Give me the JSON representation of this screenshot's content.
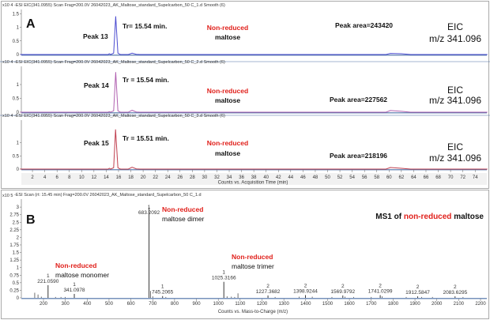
{
  "panel_labels": {
    "a": "A",
    "b": "B"
  },
  "chart_data": [
    {
      "type": "line",
      "header": "-ESI EIC(341.0955) Scan Frag=200.0V 26042023_AK_Maltose_standard_Supelcarbon_50 C_1.d  Smooth (6)",
      "y_multiplier": "x10 4",
      "yticks": [
        "0",
        "0.5",
        "1",
        "1.5"
      ],
      "ytick_values": [
        0,
        0.5,
        1,
        1.5
      ],
      "color": "#4b4bd0",
      "x": [
        0,
        14.3,
        14.5,
        14.7,
        15.2,
        15.54,
        15.9,
        16.3,
        17.6,
        18.2,
        18.9,
        19.5,
        59.5,
        60.2,
        62,
        63.5,
        76
      ],
      "y": [
        0,
        0,
        0.03,
        0,
        0.05,
        1.4,
        0.05,
        0,
        0,
        0.05,
        0.01,
        0,
        0,
        0.04,
        0.03,
        0,
        0
      ],
      "annotations": {
        "peak": "Peak 13",
        "tr": "Tr= 15.54 min.",
        "compound_red": "Non-reduced",
        "compound": "maltose",
        "area": "Peak area=243420",
        "eic": "EIC",
        "mz": "m/z 341.096"
      }
    },
    {
      "type": "line",
      "header": "-ESI EIC(341.0955) Scan Frag=200.0V 26042023_AK_Maltose_standard_Supelcarbon_50 C_2.d  Smooth (6)",
      "y_multiplier": "x10 4",
      "yticks": [
        "0",
        "0.5",
        "1"
      ],
      "ytick_values": [
        0,
        0.5,
        1
      ],
      "color": "#b060b0",
      "x": [
        0,
        14.3,
        14.5,
        14.7,
        15.2,
        15.54,
        15.9,
        16.3,
        17.6,
        18.2,
        18.9,
        19.5,
        59.5,
        60.2,
        62,
        63.5,
        76
      ],
      "y": [
        0,
        0,
        0.02,
        0,
        0.05,
        1.45,
        0.05,
        0,
        0,
        0.07,
        0.01,
        0,
        0,
        0.06,
        0.03,
        0,
        0
      ],
      "annotations": {
        "peak": "Peak 14",
        "tr": "Tr = 15.54 min.",
        "compound_red": "Non-reduced",
        "compound": "maltose",
        "area": "Peak area=227562",
        "eic": "EIC",
        "mz": "m/z 341.096"
      }
    },
    {
      "type": "line",
      "header": "-ESI EIC(341.0955) Scan Frag=200.0V 26042023_AK_Maltose_standard_Supelcarbon_50 C_3.d  Smooth (6)",
      "y_multiplier": "x10 4",
      "yticks": [
        "0",
        "0.5",
        "1"
      ],
      "ytick_values": [
        0,
        0.5,
        1
      ],
      "color": "#c04050",
      "x": [
        0,
        14.3,
        14.5,
        14.7,
        15.2,
        15.51,
        15.9,
        16.3,
        17.6,
        18.2,
        18.9,
        19.5,
        59.5,
        60.2,
        62,
        63.5,
        76
      ],
      "y": [
        0,
        0,
        0.03,
        0,
        0.05,
        1.5,
        0.05,
        0,
        0,
        0.07,
        0.01,
        0,
        0,
        0.06,
        0.03,
        0,
        0
      ],
      "annotations": {
        "peak": "Peak 15",
        "tr": "Tr = 15.51 min.",
        "compound_red": "Non-reduced",
        "compound": "maltose",
        "area": "Peak area=218196",
        "eic": "EIC",
        "mz": "m/z 341.096"
      },
      "xticks": [
        "2",
        "4",
        "6",
        "8",
        "10",
        "12",
        "14",
        "16",
        "18",
        "20",
        "22",
        "24",
        "26",
        "28",
        "30",
        "32",
        "34",
        "36",
        "38",
        "40",
        "42",
        "44",
        "46",
        "48",
        "50",
        "52",
        "54",
        "56",
        "58",
        "60",
        "62",
        "64",
        "66",
        "68",
        "70",
        "72",
        "74"
      ],
      "xlabel": "Counts vs. Acquisition Time (min)"
    },
    {
      "type": "bar",
      "header": "-ESI Scan (rt: 15.45 min) Frag=200.0V 26042023_AK_Maltose_standard_Supelcarbon_50 C_1.d",
      "y_multiplier": "x10 5",
      "yticks": [
        "0",
        "0.25",
        "0.5",
        "0.75",
        "1",
        "1.25",
        "1.5",
        "1.75",
        "2",
        "2.25",
        "2.5",
        "2.75",
        "3"
      ],
      "ytick_values": [
        0,
        0.25,
        0.5,
        0.75,
        1,
        1.25,
        1.5,
        1.75,
        2,
        2.25,
        2.5,
        2.75,
        3
      ],
      "xticks": [
        "200",
        "300",
        "400",
        "500",
        "600",
        "700",
        "800",
        "900",
        "1000",
        "1100",
        "1200",
        "1300",
        "1400",
        "1500",
        "1600",
        "1700",
        "1800",
        "1900",
        "2000",
        "2100",
        "2200"
      ],
      "xlabel": "Counts vs. Mass-to-Charge (m/z)",
      "title_prefix": "MS1 of ",
      "title_red": "non-reduced",
      "title_suffix": " maltose",
      "peaks": [
        {
          "mz": 221.059,
          "y": 0.42,
          "charge": "1",
          "label": "221.0590"
        },
        {
          "mz": 341.0978,
          "y": 0.13,
          "charge": "1",
          "label": "341.0978"
        },
        {
          "mz": 683.2092,
          "y": 2.98,
          "charge": "1",
          "label": "683.2092"
        },
        {
          "mz": 745.2065,
          "y": 0.06,
          "charge": "1",
          "label": "745.2065"
        },
        {
          "mz": 1025.3166,
          "y": 0.53,
          "charge": "1",
          "label": "1025.3166"
        },
        {
          "mz": 1227.3682,
          "y": 0.08,
          "charge": "2",
          "label": "1227.3682"
        },
        {
          "mz": 1398.9244,
          "y": 0.09,
          "charge": "2",
          "label": "1398.9244"
        },
        {
          "mz": 1569.9792,
          "y": 0.08,
          "charge": "2",
          "label": "1569.9792"
        },
        {
          "mz": 1741.0299,
          "y": 0.09,
          "charge": "2",
          "label": "1741.0299"
        },
        {
          "mz": 1912.5847,
          "y": 0.05,
          "charge": "2",
          "label": "1912.5847"
        },
        {
          "mz": 2083.6295,
          "y": 0.05,
          "charge": "2",
          "label": "2083.6295"
        }
      ],
      "minor_peaks": {
        "mz": [
          160,
          175,
          190,
          255,
          280,
          300,
          690,
          700,
          760,
          1040,
          1060,
          1075,
          1090,
          1260,
          1370,
          1430,
          1520,
          1580,
          1620,
          1700,
          1750,
          1860,
          1930,
          1980,
          2120
        ],
        "y": [
          0.17,
          0.11,
          0.04,
          0.03,
          0.03,
          0.03,
          0.23,
          0.05,
          0.03,
          0.05,
          0.04,
          0.03,
          0.15,
          0.03,
          0.04,
          0.04,
          0.03,
          0.04,
          0.03,
          0.03,
          0.05,
          0.03,
          0.03,
          0.03,
          0.03
        ]
      },
      "annotations": [
        {
          "red": "Non-reduced",
          "text": "maltose dimer"
        },
        {
          "red": "Non-reduced",
          "text": "maltose monomer"
        },
        {
          "red": "Non-reduced",
          "text": "maltose trimer"
        }
      ]
    }
  ]
}
